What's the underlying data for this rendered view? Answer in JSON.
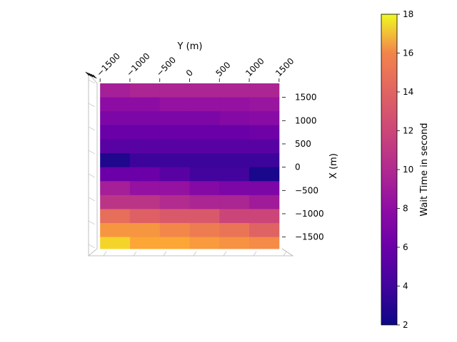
{
  "chart_data": {
    "type": "heatmap",
    "xlabel": "Y (m)",
    "ylabel": "X (m)",
    "colorbar_label": "Wait Time in second",
    "colormap": "plasma",
    "x_ticks": [
      -1500,
      -1000,
      -500,
      0,
      500,
      1000,
      1500
    ],
    "x_tick_labels": [
      "−1500",
      "−1000",
      "−500",
      "0",
      "500",
      "1000",
      "1500"
    ],
    "y_ticks": [
      1500,
      1000,
      500,
      0,
      -500,
      -1000,
      -1500
    ],
    "y_tick_labels": [
      "1500",
      "1000",
      "500",
      "0",
      "−500",
      "−1000",
      "−1500"
    ],
    "colorbar_ticks": [
      2,
      4,
      6,
      8,
      10,
      12,
      14,
      16,
      18
    ],
    "colorbar_tick_labels": [
      "2",
      "4",
      "6",
      "8",
      "10",
      "12",
      "14",
      "16",
      "18"
    ],
    "xlim": [
      -1550,
      1550
    ],
    "ylim": [
      -1750,
      1800
    ],
    "clim": [
      2,
      18
    ],
    "y_centers": [
      -1250,
      -750,
      -250,
      250,
      750,
      1250
    ],
    "x_centers": [
      1650,
      1350,
      1050,
      750,
      450,
      150,
      -150,
      -450,
      -750,
      -1050,
      -1350,
      -1650
    ],
    "values": [
      [
        8.4,
        8.8,
        8.8,
        8.8,
        8.8,
        8.8
      ],
      [
        7.2,
        7.2,
        7.6,
        7.6,
        7.6,
        7.8
      ],
      [
        6.4,
        6.4,
        6.4,
        6.4,
        6.8,
        7.0
      ],
      [
        5.5,
        5.5,
        5.5,
        5.5,
        5.5,
        5.8
      ],
      [
        4.8,
        4.8,
        4.8,
        4.8,
        4.8,
        4.8
      ],
      [
        2.6,
        3.6,
        3.6,
        3.6,
        3.6,
        3.6
      ],
      [
        5.6,
        5.6,
        4.8,
        3.8,
        3.8,
        2.4
      ],
      [
        8.4,
        7.6,
        7.6,
        6.8,
        6.4,
        6.4
      ],
      [
        9.8,
        9.8,
        9.2,
        8.8,
        8.8,
        8.2
      ],
      [
        13.2,
        12.4,
        12.0,
        12.0,
        10.8,
        10.8
      ],
      [
        15.4,
        15.4,
        14.6,
        14.0,
        13.6,
        12.6
      ],
      [
        17.2,
        16.2,
        16.2,
        15.6,
        15.2,
        14.8
      ]
    ]
  }
}
